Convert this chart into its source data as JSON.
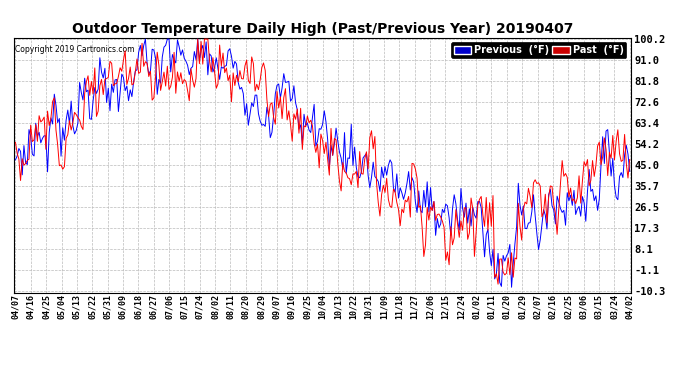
{
  "title": "Outdoor Temperature Daily High (Past/Previous Year) 20190407",
  "copyright": "Copyright 2019 Cartronics.com",
  "ylabel_ticks": [
    100.2,
    91.0,
    81.8,
    72.6,
    63.4,
    54.2,
    45.0,
    35.7,
    26.5,
    17.3,
    8.1,
    -1.1,
    -10.3
  ],
  "ylim": [
    -10.3,
    100.2
  ],
  "background_color": "#ffffff",
  "grid_color": "#bbbbbb",
  "line_color_previous": "#0000ff",
  "line_color_past": "#ff0000",
  "title_fontsize": 10,
  "tick_fontsize": 7.5,
  "legend_previous_bg": "#0000cc",
  "legend_past_bg": "#cc0000",
  "x_labels": [
    "04/07",
    "04/16",
    "04/25",
    "05/04",
    "05/13",
    "05/22",
    "05/31",
    "06/09",
    "06/18",
    "06/27",
    "07/06",
    "07/15",
    "07/24",
    "08/02",
    "08/11",
    "08/20",
    "08/29",
    "09/07",
    "09/16",
    "09/25",
    "10/04",
    "10/13",
    "10/22",
    "10/31",
    "11/09",
    "11/18",
    "11/27",
    "12/06",
    "12/15",
    "12/24",
    "01/02",
    "01/11",
    "01/20",
    "01/29",
    "02/07",
    "02/16",
    "02/25",
    "03/06",
    "03/15",
    "03/24",
    "04/02"
  ]
}
